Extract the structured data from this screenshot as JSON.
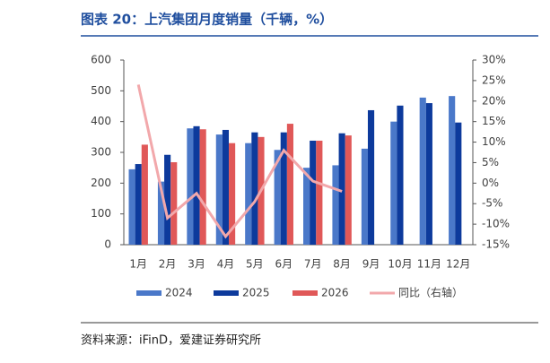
{
  "chart_data": {
    "type": "bar",
    "title": "图表 20：上汽集团月度销量（千辆，%）",
    "source": "资料来源：iFinD，爱建证券研究所",
    "categories": [
      "1月",
      "2月",
      "3月",
      "4月",
      "5月",
      "6月",
      "7月",
      "8月",
      "9月",
      "10月",
      "11月",
      "12月"
    ],
    "series": [
      {
        "name": "2024",
        "color": "#4a78c9",
        "values": [
          245,
          205,
          378,
          358,
          330,
          308,
          250,
          258,
          312,
          400,
          478,
          483
        ]
      },
      {
        "name": "2025",
        "color": "#0d3a9c",
        "values": [
          262,
          292,
          385,
          373,
          365,
          365,
          338,
          362,
          437,
          452,
          460,
          397
        ]
      },
      {
        "name": "2026",
        "color": "#e05858",
        "values": [
          325,
          268,
          375,
          330,
          350,
          393,
          338,
          355,
          null,
          null,
          null,
          null
        ]
      },
      {
        "name": "同比（右轴）",
        "type": "line",
        "axis": "y2",
        "color": "#f2a8ab",
        "values": [
          24,
          -8.5,
          -2.5,
          -13,
          -4.5,
          8,
          0.5,
          -2,
          null,
          null,
          null,
          null
        ]
      }
    ],
    "ylim": [
      0,
      600
    ],
    "yticks": [
      0,
      100,
      200,
      300,
      400,
      500,
      600
    ],
    "y2lim": [
      -15,
      30
    ],
    "y2ticks": [
      {
        "value": 30,
        "label": "30%"
      },
      {
        "value": 25,
        "label": "25%"
      },
      {
        "value": 20,
        "label": "20%"
      },
      {
        "value": 15,
        "label": "15%"
      },
      {
        "value": 10,
        "label": "10%"
      },
      {
        "value": 5,
        "label": "5%"
      },
      {
        "value": 0,
        "label": "0%"
      },
      {
        "value": -5,
        "label": "-5%"
      },
      {
        "value": -10,
        "label": "-10%"
      },
      {
        "value": -15,
        "label": "-15%"
      }
    ],
    "grid": false,
    "legend": "bottom"
  }
}
